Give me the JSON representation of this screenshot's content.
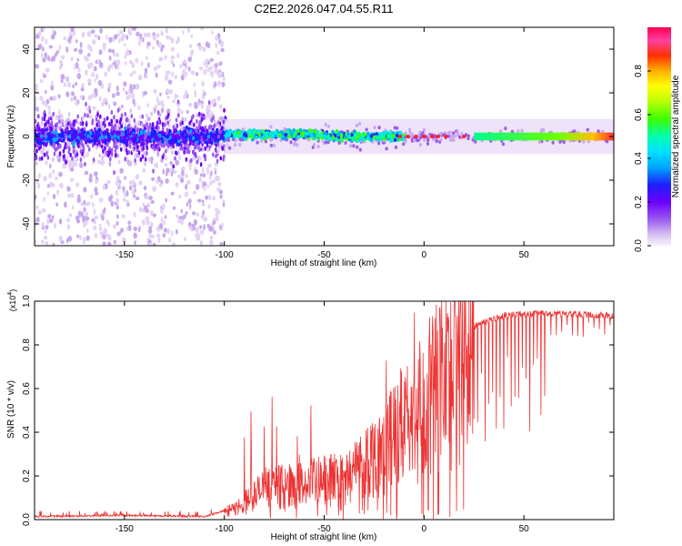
{
  "figure": {
    "title": "C2E2.2026.047.04.55.R11"
  },
  "chart_data": [
    {
      "type": "heatmap",
      "name": "spectrogram",
      "title": "C2E2.2026.047.04.55.R11",
      "xlabel": "Height of straight line (km)",
      "ylabel": "Frequency (Hz)",
      "xlim": [
        -195,
        95
      ],
      "ylim": [
        -50,
        50
      ],
      "xticks": [
        -150,
        -100,
        -50,
        0,
        50
      ],
      "yticks": [
        -40,
        -20,
        0,
        20,
        40
      ],
      "grid": false,
      "colorbar": {
        "label": "Normalized spectral amplitude",
        "range": [
          0.0,
          1.0
        ],
        "ticks": [
          "0.0",
          "0.2",
          "0.4",
          "0.6",
          "0.8"
        ],
        "colormap": [
          "#f7f3fb",
          "#d8c2f2",
          "#9b59f0",
          "#6a00ff",
          "#1a20ff",
          "#00a8ff",
          "#00e0ff",
          "#00ffb0",
          "#3cff00",
          "#b8ff00",
          "#ffff00",
          "#ffb000",
          "#ff3000",
          "#ff40a0",
          "#ff0050"
        ]
      },
      "description_values": {
        "central_band_frequency_hz": 0,
        "noise_region_x_range_km": [
          -195,
          -100
        ],
        "coherent_region_x_range_km": [
          -100,
          95
        ]
      }
    },
    {
      "type": "line",
      "name": "snr",
      "xlabel": "Height of straight line (km)",
      "ylabel": "SNR (10 * v/v)",
      "scale_label_base": "(x10",
      "scale_label_exp": "4",
      "scale_label_end": ")",
      "xlim": [
        -195,
        95
      ],
      "ylim": [
        0.0,
        1.0
      ],
      "xticks": [
        -150,
        -100,
        -50,
        0,
        50
      ],
      "yticks": [
        "0.0",
        "0.2",
        "0.4",
        "0.6",
        "0.8",
        "1.0"
      ],
      "color": "#ee3333",
      "envelope": [
        {
          "x": -195,
          "y": 0.01
        },
        {
          "x": -150,
          "y": 0.015
        },
        {
          "x": -110,
          "y": 0.01
        },
        {
          "x": -95,
          "y": 0.05
        },
        {
          "x": -80,
          "y": 0.15
        },
        {
          "x": -60,
          "y": 0.17
        },
        {
          "x": -40,
          "y": 0.2
        },
        {
          "x": -20,
          "y": 0.35
        },
        {
          "x": 0,
          "y": 0.55
        },
        {
          "x": 15,
          "y": 0.72
        },
        {
          "x": 25,
          "y": 0.9
        },
        {
          "x": 40,
          "y": 0.95
        },
        {
          "x": 60,
          "y": 0.96
        },
        {
          "x": 95,
          "y": 0.95
        }
      ]
    }
  ]
}
